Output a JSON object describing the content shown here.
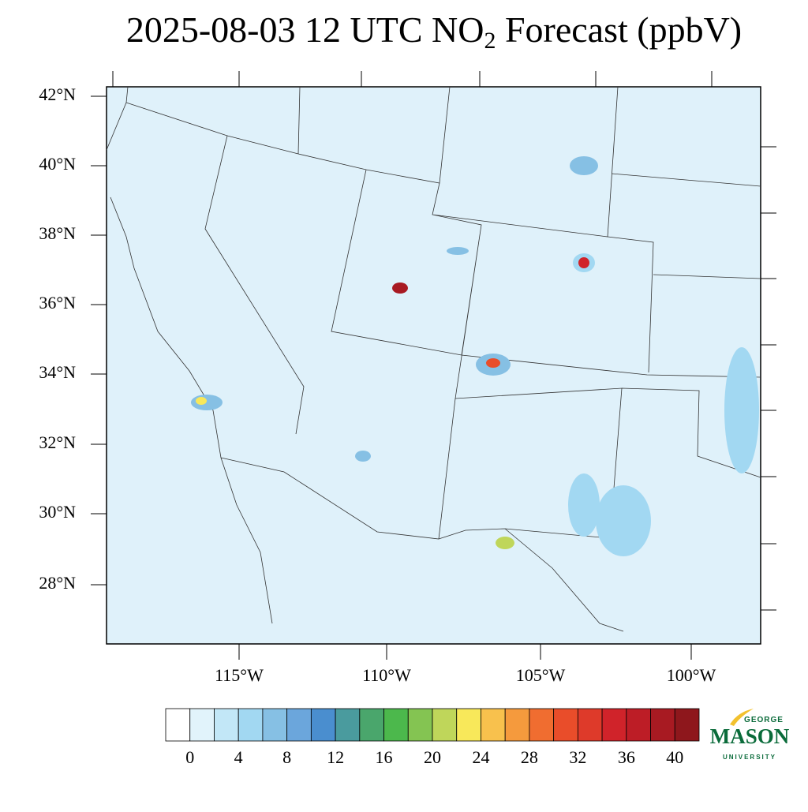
{
  "title": {
    "main": "2025-08-03 12 UTC NO",
    "subscript": "2",
    "rest": " Forecast (ppbV)"
  },
  "lat_labels": [
    "42°N",
    "40°N",
    "38°N",
    "36°N",
    "34°N",
    "32°N",
    "30°N",
    "28°N"
  ],
  "lon_labels": [
    "115°W",
    "110°W",
    "105°W",
    "100°W"
  ],
  "colorbar": {
    "ticks": [
      0,
      4,
      8,
      12,
      16,
      20,
      24,
      28,
      32,
      36,
      40
    ],
    "colors": [
      "#ffffff",
      "#e1f3fb",
      "#c2e7f7",
      "#a2d8f2",
      "#86c0e4",
      "#6ba6dc",
      "#4a8ecf",
      "#4a9b9e",
      "#4aa66c",
      "#4cb84c",
      "#84c452",
      "#bfd65a",
      "#f8e85a",
      "#f8c14d",
      "#f59a3d",
      "#f06d30",
      "#e94d2a",
      "#de3a2a",
      "#d0232a",
      "#bd1d26",
      "#a81a22",
      "#8e171c"
    ]
  },
  "logo": {
    "top": "GEORGE",
    "main": "MASON",
    "bottom": "UNIVERSITY"
  }
}
